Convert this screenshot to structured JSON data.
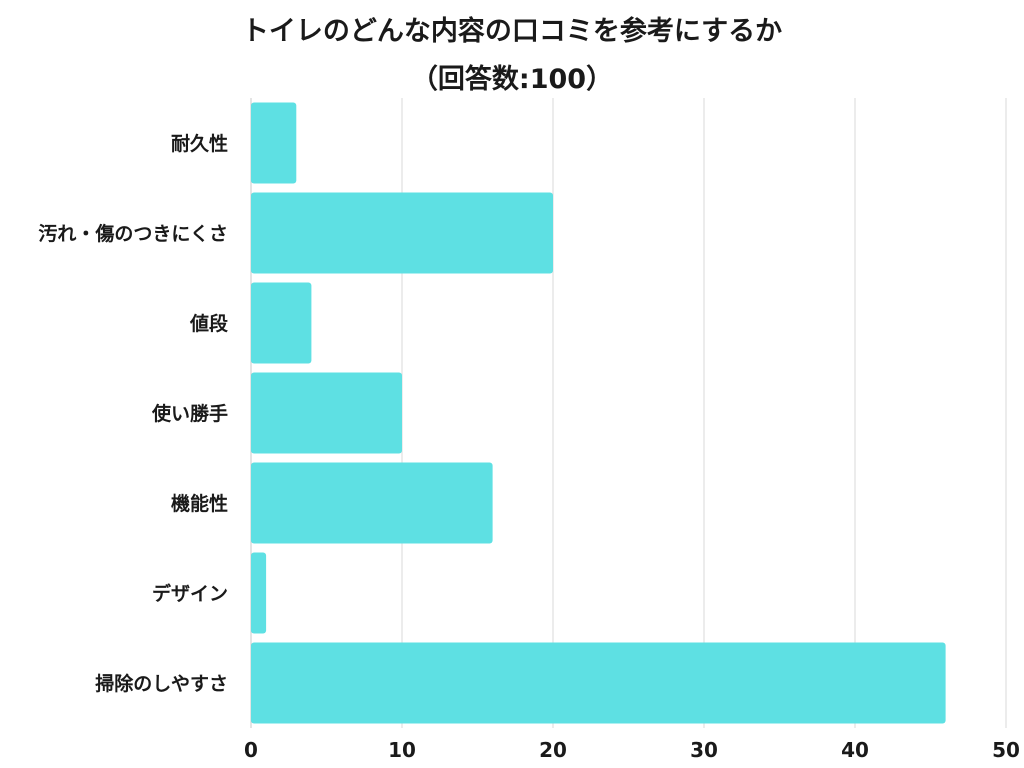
{
  "title": "トイレのどんな内容の口コミを参考にするか",
  "subtitle": "（回答数:100）",
  "chart_data": {
    "type": "bar",
    "orientation": "horizontal",
    "title": "トイレのどんな内容の口コミを参考にするか",
    "subtitle": "（回答数:100）",
    "categories": [
      "耐久性",
      "汚れ・傷のつきにくさ",
      "値段",
      "使い勝手",
      "機能性",
      "デザイン",
      "掃除のしやすさ"
    ],
    "values": [
      3,
      20,
      4,
      10,
      16,
      1,
      46
    ],
    "xlim": [
      0,
      50
    ],
    "xticks": [
      "0",
      "10",
      "20",
      "30",
      "40",
      "50"
    ],
    "xlabel": "",
    "ylabel": "",
    "grid": "vertical",
    "bar_color": "#5ee0e3"
  }
}
